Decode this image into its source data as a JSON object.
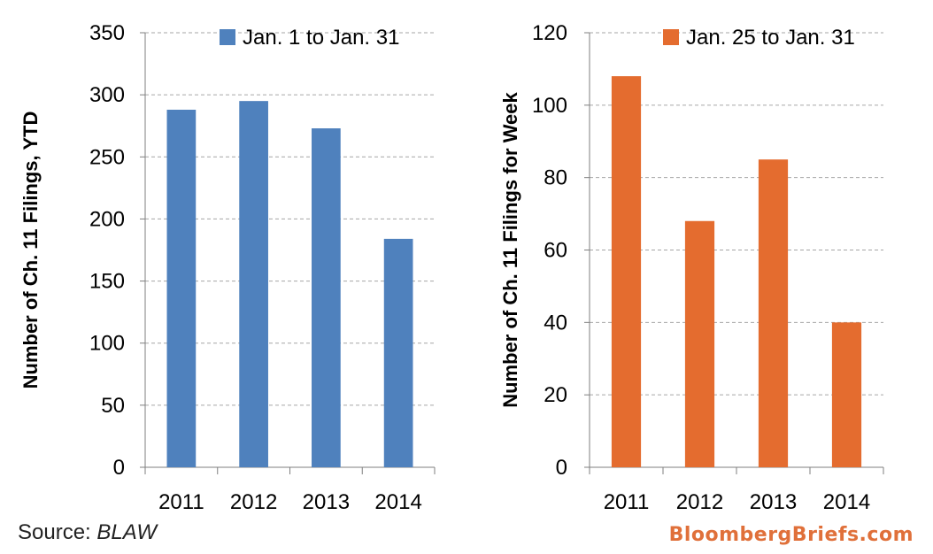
{
  "chart_data": [
    {
      "type": "bar",
      "categories": [
        "2011",
        "2012",
        "2013",
        "2014"
      ],
      "series": [
        {
          "name": "Jan. 1 to Jan. 31",
          "values": [
            288,
            295,
            273,
            184
          ]
        }
      ],
      "ylabel": "Number of Ch. 11 Filings, YTD",
      "xlabel": "",
      "ylim": [
        0,
        350
      ],
      "yticks": [
        0,
        50,
        100,
        150,
        200,
        250,
        300,
        350
      ],
      "grid": true,
      "legend": "top",
      "color": "#4f81bd"
    },
    {
      "type": "bar",
      "categories": [
        "2011",
        "2012",
        "2013",
        "2014"
      ],
      "series": [
        {
          "name": "Jan. 25 to Jan. 31",
          "values": [
            108,
            68,
            85,
            40
          ]
        }
      ],
      "ylabel": "Number of Ch. 11 Filings for Week",
      "xlabel": "",
      "ylim": [
        0,
        120
      ],
      "yticks": [
        0,
        20,
        40,
        60,
        80,
        100,
        120
      ],
      "grid": true,
      "legend": "top",
      "color": "#e46c2f"
    }
  ],
  "source": {
    "prefix": "Source: ",
    "name": "BLAW"
  },
  "watermark": "BloombergBriefs.com"
}
